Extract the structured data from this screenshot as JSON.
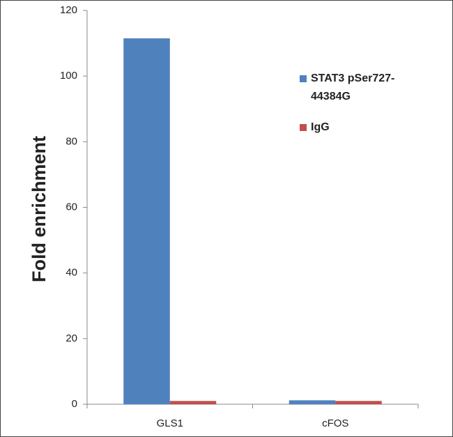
{
  "chart_data": {
    "type": "bar",
    "y_label": "Fold enrichment",
    "categories": [
      "GLS1",
      "cFOS"
    ],
    "series": [
      {
        "name": "STAT3 pSer727-44384G",
        "color": "#4f81bd",
        "values": [
          111.5,
          1.2
        ]
      },
      {
        "name": "IgG",
        "color": "#c0504d",
        "values": [
          1,
          1
        ]
      }
    ],
    "ylim": [
      0,
      120
    ],
    "yticks": [
      0,
      20,
      40,
      60,
      80,
      100,
      120
    ],
    "grid": false,
    "legend": "upper right"
  }
}
